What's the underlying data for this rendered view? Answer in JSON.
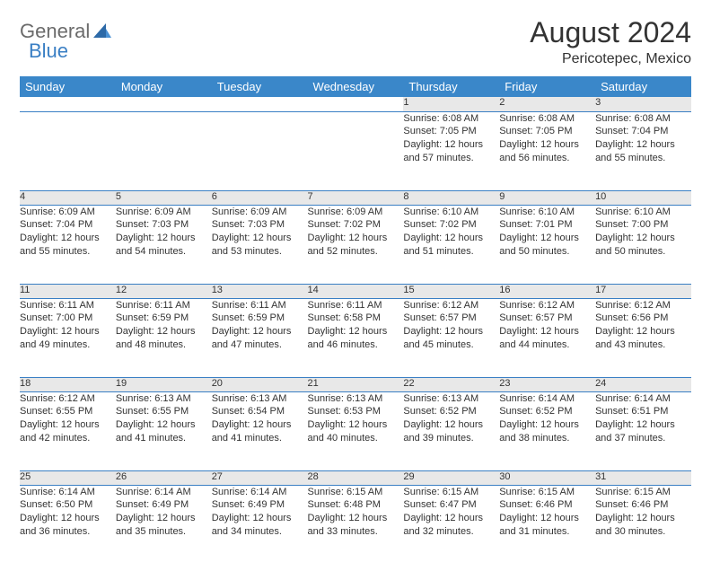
{
  "logo": {
    "general": "General",
    "blue": "Blue"
  },
  "title": "August 2024",
  "location": "Pericotepec, Mexico",
  "colors": {
    "header_bg": "#3a87c9",
    "header_text": "#ffffff",
    "daynum_bg": "#e8e8e8",
    "border": "#3a7fc4",
    "text": "#333333",
    "logo_gray": "#6b6b6b",
    "logo_blue": "#3a7fc4"
  },
  "typography": {
    "title_fontsize": 32,
    "location_fontsize": 16,
    "header_fontsize": 13,
    "daynum_fontsize": 12,
    "body_fontsize": 11
  },
  "weekdays": [
    "Sunday",
    "Monday",
    "Tuesday",
    "Wednesday",
    "Thursday",
    "Friday",
    "Saturday"
  ],
  "weeks": [
    [
      null,
      null,
      null,
      null,
      {
        "n": "1",
        "sr": "Sunrise: 6:08 AM",
        "ss": "Sunset: 7:05 PM",
        "dl": "Daylight: 12 hours and 57 minutes."
      },
      {
        "n": "2",
        "sr": "Sunrise: 6:08 AM",
        "ss": "Sunset: 7:05 PM",
        "dl": "Daylight: 12 hours and 56 minutes."
      },
      {
        "n": "3",
        "sr": "Sunrise: 6:08 AM",
        "ss": "Sunset: 7:04 PM",
        "dl": "Daylight: 12 hours and 55 minutes."
      }
    ],
    [
      {
        "n": "4",
        "sr": "Sunrise: 6:09 AM",
        "ss": "Sunset: 7:04 PM",
        "dl": "Daylight: 12 hours and 55 minutes."
      },
      {
        "n": "5",
        "sr": "Sunrise: 6:09 AM",
        "ss": "Sunset: 7:03 PM",
        "dl": "Daylight: 12 hours and 54 minutes."
      },
      {
        "n": "6",
        "sr": "Sunrise: 6:09 AM",
        "ss": "Sunset: 7:03 PM",
        "dl": "Daylight: 12 hours and 53 minutes."
      },
      {
        "n": "7",
        "sr": "Sunrise: 6:09 AM",
        "ss": "Sunset: 7:02 PM",
        "dl": "Daylight: 12 hours and 52 minutes."
      },
      {
        "n": "8",
        "sr": "Sunrise: 6:10 AM",
        "ss": "Sunset: 7:02 PM",
        "dl": "Daylight: 12 hours and 51 minutes."
      },
      {
        "n": "9",
        "sr": "Sunrise: 6:10 AM",
        "ss": "Sunset: 7:01 PM",
        "dl": "Daylight: 12 hours and 50 minutes."
      },
      {
        "n": "10",
        "sr": "Sunrise: 6:10 AM",
        "ss": "Sunset: 7:00 PM",
        "dl": "Daylight: 12 hours and 50 minutes."
      }
    ],
    [
      {
        "n": "11",
        "sr": "Sunrise: 6:11 AM",
        "ss": "Sunset: 7:00 PM",
        "dl": "Daylight: 12 hours and 49 minutes."
      },
      {
        "n": "12",
        "sr": "Sunrise: 6:11 AM",
        "ss": "Sunset: 6:59 PM",
        "dl": "Daylight: 12 hours and 48 minutes."
      },
      {
        "n": "13",
        "sr": "Sunrise: 6:11 AM",
        "ss": "Sunset: 6:59 PM",
        "dl": "Daylight: 12 hours and 47 minutes."
      },
      {
        "n": "14",
        "sr": "Sunrise: 6:11 AM",
        "ss": "Sunset: 6:58 PM",
        "dl": "Daylight: 12 hours and 46 minutes."
      },
      {
        "n": "15",
        "sr": "Sunrise: 6:12 AM",
        "ss": "Sunset: 6:57 PM",
        "dl": "Daylight: 12 hours and 45 minutes."
      },
      {
        "n": "16",
        "sr": "Sunrise: 6:12 AM",
        "ss": "Sunset: 6:57 PM",
        "dl": "Daylight: 12 hours and 44 minutes."
      },
      {
        "n": "17",
        "sr": "Sunrise: 6:12 AM",
        "ss": "Sunset: 6:56 PM",
        "dl": "Daylight: 12 hours and 43 minutes."
      }
    ],
    [
      {
        "n": "18",
        "sr": "Sunrise: 6:12 AM",
        "ss": "Sunset: 6:55 PM",
        "dl": "Daylight: 12 hours and 42 minutes."
      },
      {
        "n": "19",
        "sr": "Sunrise: 6:13 AM",
        "ss": "Sunset: 6:55 PM",
        "dl": "Daylight: 12 hours and 41 minutes."
      },
      {
        "n": "20",
        "sr": "Sunrise: 6:13 AM",
        "ss": "Sunset: 6:54 PM",
        "dl": "Daylight: 12 hours and 41 minutes."
      },
      {
        "n": "21",
        "sr": "Sunrise: 6:13 AM",
        "ss": "Sunset: 6:53 PM",
        "dl": "Daylight: 12 hours and 40 minutes."
      },
      {
        "n": "22",
        "sr": "Sunrise: 6:13 AM",
        "ss": "Sunset: 6:52 PM",
        "dl": "Daylight: 12 hours and 39 minutes."
      },
      {
        "n": "23",
        "sr": "Sunrise: 6:14 AM",
        "ss": "Sunset: 6:52 PM",
        "dl": "Daylight: 12 hours and 38 minutes."
      },
      {
        "n": "24",
        "sr": "Sunrise: 6:14 AM",
        "ss": "Sunset: 6:51 PM",
        "dl": "Daylight: 12 hours and 37 minutes."
      }
    ],
    [
      {
        "n": "25",
        "sr": "Sunrise: 6:14 AM",
        "ss": "Sunset: 6:50 PM",
        "dl": "Daylight: 12 hours and 36 minutes."
      },
      {
        "n": "26",
        "sr": "Sunrise: 6:14 AM",
        "ss": "Sunset: 6:49 PM",
        "dl": "Daylight: 12 hours and 35 minutes."
      },
      {
        "n": "27",
        "sr": "Sunrise: 6:14 AM",
        "ss": "Sunset: 6:49 PM",
        "dl": "Daylight: 12 hours and 34 minutes."
      },
      {
        "n": "28",
        "sr": "Sunrise: 6:15 AM",
        "ss": "Sunset: 6:48 PM",
        "dl": "Daylight: 12 hours and 33 minutes."
      },
      {
        "n": "29",
        "sr": "Sunrise: 6:15 AM",
        "ss": "Sunset: 6:47 PM",
        "dl": "Daylight: 12 hours and 32 minutes."
      },
      {
        "n": "30",
        "sr": "Sunrise: 6:15 AM",
        "ss": "Sunset: 6:46 PM",
        "dl": "Daylight: 12 hours and 31 minutes."
      },
      {
        "n": "31",
        "sr": "Sunrise: 6:15 AM",
        "ss": "Sunset: 6:46 PM",
        "dl": "Daylight: 12 hours and 30 minutes."
      }
    ]
  ]
}
